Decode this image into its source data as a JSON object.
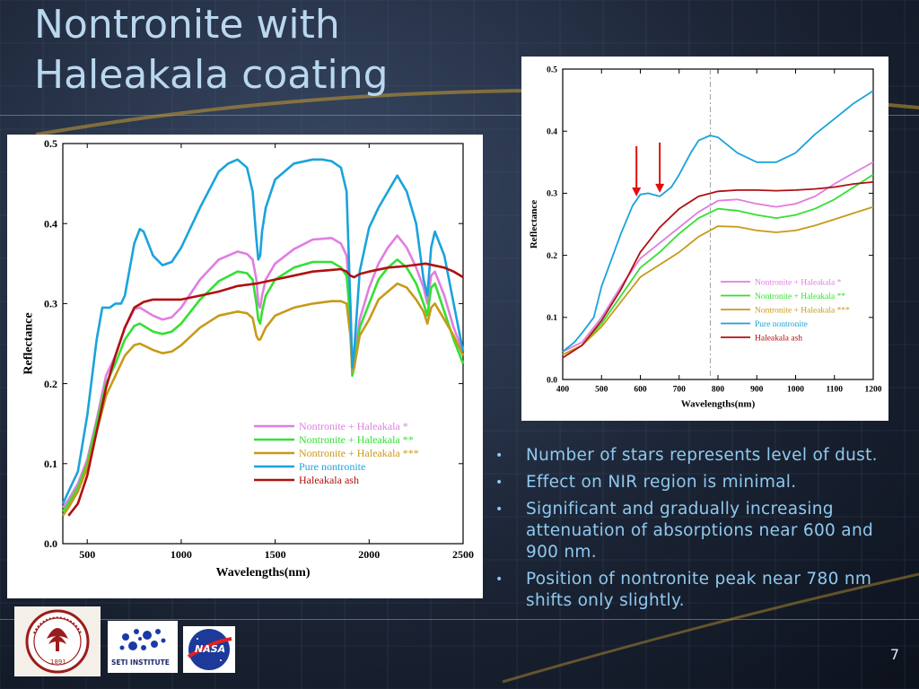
{
  "slide": {
    "title": "Nontronite with Haleakala coating",
    "page_number": "7",
    "bullets": [
      "Number of stars represents  level of dust.",
      "Effect on NIR region is minimal.",
      "Significant and gradually increasing attenuation of absorptions near 600 and 900 nm.",
      "Position of nontronite peak near 780 nm shifts only slightly."
    ]
  },
  "logos": {
    "stanford": {
      "icon": "stanford-seal-icon",
      "text": "1891"
    },
    "seti": {
      "icon": "seti-institute-icon",
      "text": "SETI INSTITUTE"
    },
    "nasa": {
      "icon": "nasa-meatball-icon",
      "text": "NASA"
    }
  },
  "colors": {
    "nontronite_h1": "#e07ee0",
    "nontronite_h2": "#33e033",
    "nontronite_h3": "#c89a18",
    "pure_nontronite": "#1aa3dc",
    "haleakala_ash": "#b01010",
    "arrow": "#e01010"
  },
  "chart_data": [
    {
      "type": "line",
      "xlabel": "Wavelengths(nm)",
      "ylabel": "Reflectance",
      "xlim": [
        370,
        2500
      ],
      "ylim": [
        0.0,
        0.5
      ],
      "xticks": [
        500,
        1000,
        1500,
        2000,
        2500
      ],
      "yticks": [
        0.0,
        0.1,
        0.2,
        0.3,
        0.4,
        0.5
      ],
      "xtick_labels": [
        "500",
        "1000",
        "1500",
        "2000",
        "2500"
      ],
      "ytick_labels": [
        "0.0",
        "0.1",
        "0.2",
        "0.3",
        "0.4",
        "0.5"
      ],
      "grid": false,
      "legend_position": "bottom-right",
      "series": [
        {
          "name": "Nontronite + Haleakala *",
          "color": "#e07ee0",
          "x": [
            370,
            400,
            450,
            500,
            550,
            600,
            650,
            700,
            750,
            780,
            850,
            900,
            950,
            1000,
            1100,
            1200,
            1300,
            1350,
            1380,
            1400,
            1410,
            1420,
            1430,
            1450,
            1500,
            1600,
            1700,
            1800,
            1850,
            1880,
            1900,
            1910,
            1920,
            1950,
            2000,
            2050,
            2100,
            2150,
            2200,
            2250,
            2290,
            2310,
            2330,
            2350,
            2400,
            2450,
            2500
          ],
          "y": [
            0.045,
            0.055,
            0.075,
            0.105,
            0.155,
            0.21,
            0.235,
            0.27,
            0.293,
            0.295,
            0.285,
            0.28,
            0.283,
            0.295,
            0.33,
            0.355,
            0.365,
            0.362,
            0.355,
            0.33,
            0.3,
            0.295,
            0.31,
            0.33,
            0.35,
            0.368,
            0.38,
            0.382,
            0.375,
            0.36,
            0.3,
            0.22,
            0.23,
            0.28,
            0.32,
            0.35,
            0.37,
            0.385,
            0.37,
            0.345,
            0.32,
            0.3,
            0.335,
            0.34,
            0.31,
            0.27,
            0.24
          ]
        },
        {
          "name": "Nontronite + Haleakala **",
          "color": "#33e033",
          "x": [
            370,
            400,
            450,
            500,
            550,
            600,
            650,
            700,
            750,
            780,
            850,
            900,
            950,
            1000,
            1100,
            1200,
            1300,
            1350,
            1380,
            1400,
            1410,
            1420,
            1430,
            1450,
            1500,
            1600,
            1700,
            1800,
            1850,
            1880,
            1900,
            1910,
            1920,
            1950,
            2000,
            2050,
            2100,
            2150,
            2200,
            2250,
            2290,
            2310,
            2330,
            2350,
            2400,
            2450,
            2500
          ],
          "y": [
            0.04,
            0.05,
            0.07,
            0.1,
            0.15,
            0.2,
            0.225,
            0.255,
            0.272,
            0.275,
            0.265,
            0.262,
            0.265,
            0.275,
            0.305,
            0.328,
            0.34,
            0.338,
            0.33,
            0.3,
            0.28,
            0.275,
            0.29,
            0.31,
            0.33,
            0.345,
            0.352,
            0.352,
            0.345,
            0.335,
            0.28,
            0.21,
            0.22,
            0.27,
            0.3,
            0.33,
            0.345,
            0.355,
            0.345,
            0.325,
            0.3,
            0.285,
            0.32,
            0.325,
            0.29,
            0.255,
            0.225
          ]
        },
        {
          "name": "Nontronite + Haleakala ***",
          "color": "#c89a18",
          "x": [
            370,
            400,
            450,
            500,
            550,
            600,
            650,
            700,
            750,
            780,
            850,
            900,
            950,
            1000,
            1100,
            1200,
            1300,
            1350,
            1380,
            1400,
            1410,
            1420,
            1430,
            1450,
            1500,
            1600,
            1700,
            1800,
            1850,
            1880,
            1900,
            1910,
            1920,
            1950,
            2000,
            2050,
            2100,
            2150,
            2200,
            2250,
            2290,
            2310,
            2330,
            2350,
            2400,
            2450,
            2500
          ],
          "y": [
            0.035,
            0.045,
            0.065,
            0.095,
            0.14,
            0.185,
            0.21,
            0.235,
            0.248,
            0.25,
            0.242,
            0.238,
            0.24,
            0.248,
            0.27,
            0.285,
            0.29,
            0.288,
            0.282,
            0.26,
            0.255,
            0.255,
            0.26,
            0.27,
            0.285,
            0.295,
            0.3,
            0.303,
            0.303,
            0.3,
            0.26,
            0.215,
            0.22,
            0.26,
            0.28,
            0.305,
            0.315,
            0.325,
            0.32,
            0.305,
            0.29,
            0.275,
            0.295,
            0.3,
            0.28,
            0.26,
            0.235
          ]
        },
        {
          "name": "Pure nontronite",
          "color": "#1aa3dc",
          "x": [
            370,
            400,
            450,
            500,
            550,
            580,
            620,
            650,
            680,
            700,
            750,
            780,
            800,
            850,
            900,
            950,
            1000,
            1100,
            1200,
            1250,
            1300,
            1350,
            1380,
            1400,
            1410,
            1420,
            1430,
            1450,
            1500,
            1600,
            1700,
            1750,
            1800,
            1850,
            1880,
            1900,
            1910,
            1920,
            1950,
            2000,
            2050,
            2100,
            2150,
            2200,
            2250,
            2290,
            2310,
            2330,
            2350,
            2400,
            2450,
            2500
          ],
          "y": [
            0.05,
            0.065,
            0.09,
            0.16,
            0.255,
            0.295,
            0.295,
            0.3,
            0.3,
            0.31,
            0.375,
            0.393,
            0.39,
            0.36,
            0.348,
            0.352,
            0.37,
            0.42,
            0.465,
            0.475,
            0.48,
            0.47,
            0.44,
            0.38,
            0.355,
            0.36,
            0.39,
            0.42,
            0.455,
            0.475,
            0.48,
            0.48,
            0.478,
            0.47,
            0.44,
            0.3,
            0.22,
            0.24,
            0.34,
            0.395,
            0.42,
            0.44,
            0.46,
            0.44,
            0.4,
            0.33,
            0.31,
            0.37,
            0.39,
            0.36,
            0.3,
            0.24
          ]
        },
        {
          "name": "Haleakala ash",
          "color": "#b01010",
          "x": [
            400,
            450,
            500,
            550,
            600,
            650,
            700,
            750,
            800,
            850,
            900,
            1000,
            1100,
            1200,
            1300,
            1400,
            1500,
            1600,
            1700,
            1800,
            1850,
            1880,
            1900,
            1920,
            1950,
            2000,
            2100,
            2200,
            2300,
            2400,
            2450,
            2500
          ],
          "y": [
            0.035,
            0.05,
            0.085,
            0.14,
            0.195,
            0.235,
            0.27,
            0.295,
            0.302,
            0.305,
            0.305,
            0.305,
            0.31,
            0.315,
            0.322,
            0.325,
            0.33,
            0.335,
            0.34,
            0.342,
            0.343,
            0.34,
            0.335,
            0.333,
            0.337,
            0.34,
            0.345,
            0.347,
            0.35,
            0.345,
            0.34,
            0.333
          ]
        }
      ]
    },
    {
      "type": "line",
      "xlabel": "Wavelengths(nm)",
      "ylabel": "Reflectance",
      "xlim": [
        400,
        1200
      ],
      "ylim": [
        0.0,
        0.5
      ],
      "xticks": [
        400,
        500,
        600,
        700,
        800,
        900,
        1000,
        1100,
        1200
      ],
      "yticks": [
        0.0,
        0.1,
        0.2,
        0.3,
        0.4,
        0.5
      ],
      "xtick_labels": [
        "400",
        "500",
        "600",
        "700",
        "800",
        "900",
        "1000",
        "1100",
        "1200"
      ],
      "ytick_labels": [
        "0.0",
        "0.1",
        "0.2",
        "0.3",
        "0.4",
        "0.5"
      ],
      "grid": false,
      "legend_position": "bottom-right",
      "reference_line_x": 780,
      "arrows_at_x": [
        590,
        650
      ],
      "series": [
        {
          "name": "Nontronite + Haleakala *",
          "color": "#e07ee0",
          "x": [
            400,
            450,
            500,
            550,
            600,
            650,
            700,
            750,
            800,
            850,
            900,
            950,
            1000,
            1050,
            1100,
            1150,
            1200
          ],
          "y": [
            0.045,
            0.06,
            0.1,
            0.15,
            0.195,
            0.22,
            0.245,
            0.27,
            0.288,
            0.29,
            0.283,
            0.278,
            0.283,
            0.295,
            0.315,
            0.333,
            0.35
          ]
        },
        {
          "name": "Nontronite + Haleakala **",
          "color": "#33e033",
          "x": [
            400,
            450,
            500,
            550,
            600,
            650,
            700,
            750,
            800,
            850,
            900,
            950,
            1000,
            1050,
            1100,
            1150,
            1200
          ],
          "y": [
            0.04,
            0.055,
            0.09,
            0.135,
            0.18,
            0.205,
            0.235,
            0.26,
            0.275,
            0.272,
            0.265,
            0.26,
            0.265,
            0.275,
            0.29,
            0.31,
            0.33
          ]
        },
        {
          "name": "Nontronite + Haleakala ***",
          "color": "#c89a18",
          "x": [
            400,
            450,
            500,
            550,
            600,
            650,
            700,
            750,
            800,
            850,
            900,
            950,
            1000,
            1050,
            1100,
            1150,
            1200
          ],
          "y": [
            0.04,
            0.055,
            0.085,
            0.125,
            0.165,
            0.185,
            0.205,
            0.23,
            0.247,
            0.246,
            0.24,
            0.237,
            0.24,
            0.248,
            0.258,
            0.268,
            0.278
          ]
        },
        {
          "name": "Pure nontronite",
          "color": "#1aa3dc",
          "x": [
            400,
            430,
            450,
            480,
            500,
            550,
            580,
            600,
            620,
            650,
            680,
            700,
            730,
            750,
            780,
            800,
            850,
            900,
            950,
            1000,
            1050,
            1100,
            1150,
            1200
          ],
          "y": [
            0.045,
            0.06,
            0.075,
            0.1,
            0.15,
            0.235,
            0.28,
            0.298,
            0.3,
            0.295,
            0.31,
            0.33,
            0.365,
            0.385,
            0.393,
            0.39,
            0.365,
            0.35,
            0.35,
            0.365,
            0.395,
            0.42,
            0.445,
            0.465
          ]
        },
        {
          "name": "Haleakala ash",
          "color": "#b01010",
          "x": [
            400,
            450,
            500,
            550,
            600,
            650,
            700,
            750,
            800,
            850,
            900,
            950,
            1000,
            1050,
            1100,
            1150,
            1200
          ],
          "y": [
            0.035,
            0.055,
            0.095,
            0.145,
            0.205,
            0.245,
            0.275,
            0.295,
            0.303,
            0.305,
            0.305,
            0.304,
            0.305,
            0.307,
            0.31,
            0.315,
            0.318
          ]
        }
      ]
    }
  ]
}
